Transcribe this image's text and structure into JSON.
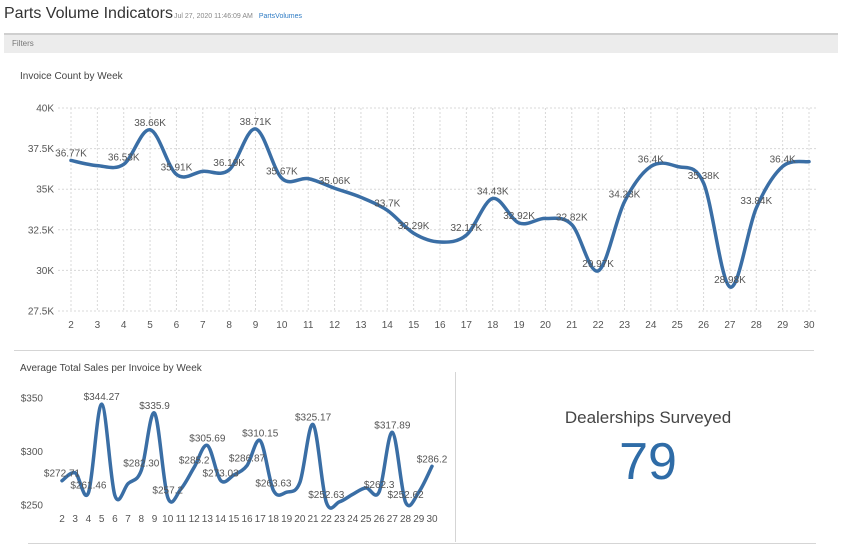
{
  "header": {
    "title": "Parts Volume Indicators",
    "timestamp": "Jul 27, 2020 11:46:09 AM",
    "link": "PartsVolumes"
  },
  "filters": {
    "label": "Filters"
  },
  "colors": {
    "line": "#3a6ea5",
    "grid": "#d8d8d8",
    "text": "#555555"
  },
  "chart_data": [
    {
      "type": "line",
      "title": "Invoice Count by Week",
      "x": [
        2,
        3,
        4,
        5,
        6,
        7,
        8,
        9,
        10,
        11,
        12,
        13,
        14,
        15,
        16,
        17,
        18,
        19,
        20,
        21,
        22,
        23,
        24,
        25,
        26,
        27,
        28,
        29,
        30
      ],
      "values": [
        36770,
        36450,
        36530,
        38660,
        35910,
        36100,
        36190,
        38710,
        35670,
        35650,
        35060,
        34500,
        33700,
        32290,
        31750,
        32170,
        34430,
        32920,
        33200,
        32820,
        29970,
        34230,
        36400,
        36400,
        35380,
        28980,
        33840,
        36400,
        36700
      ],
      "data_labels": [
        "36.77K",
        "",
        "36.53K",
        "38.66K",
        "35.91K",
        "",
        "36.19K",
        "38.71K",
        "35.67K",
        "",
        "35.06K",
        "",
        "33.7K",
        "32.29K",
        "",
        "32.17K",
        "34.43K",
        "32.92K",
        "",
        "32.82K",
        "29.97K",
        "34.23K",
        "36.4K",
        "",
        "35.38K",
        "28.98K",
        "33.84K",
        "36.4K",
        ""
      ],
      "ylim": [
        27500,
        40000
      ],
      "yticks": [
        27500,
        30000,
        32500,
        35000,
        37500,
        40000
      ],
      "ytick_labels": [
        "27.5K",
        "30K",
        "32.5K",
        "35K",
        "37.5K",
        "40K"
      ],
      "grid": true
    },
    {
      "type": "line",
      "title": "Average Total Sales per Invoice by Week",
      "x": [
        2,
        3,
        4,
        5,
        6,
        7,
        8,
        9,
        10,
        11,
        12,
        13,
        14,
        15,
        16,
        17,
        18,
        19,
        20,
        21,
        22,
        23,
        24,
        25,
        26,
        27,
        28,
        29,
        30
      ],
      "values": [
        272.71,
        280,
        261.46,
        344.27,
        259,
        270,
        282.3,
        335.9,
        257.2,
        265,
        285.2,
        305.69,
        273.03,
        278,
        286.87,
        310.15,
        263.63,
        262,
        271,
        325.17,
        252.63,
        253,
        260,
        266,
        262.3,
        317.89,
        252.62,
        262,
        286.2
      ],
      "data_labels": [
        "$272.71",
        "",
        "$261.46",
        "$344.27",
        "",
        "",
        "$282.30",
        "$335.9",
        "$257.2",
        "",
        "$285.2",
        "$305.69",
        "$273.03",
        "",
        "$286.87",
        "$310.15",
        "$263.63",
        "",
        "",
        "$325.17",
        "$252.63",
        "",
        "",
        "",
        "$262.3",
        "$317.89",
        "$252.62",
        "",
        "$286.2"
      ],
      "ylim": [
        250,
        350
      ],
      "yticks": [
        250,
        300,
        350
      ],
      "ytick_labels": [
        "$250",
        "$300",
        "$350"
      ],
      "grid": false
    }
  ],
  "kpi": {
    "label": "Dealerships Surveyed",
    "value": "79"
  }
}
